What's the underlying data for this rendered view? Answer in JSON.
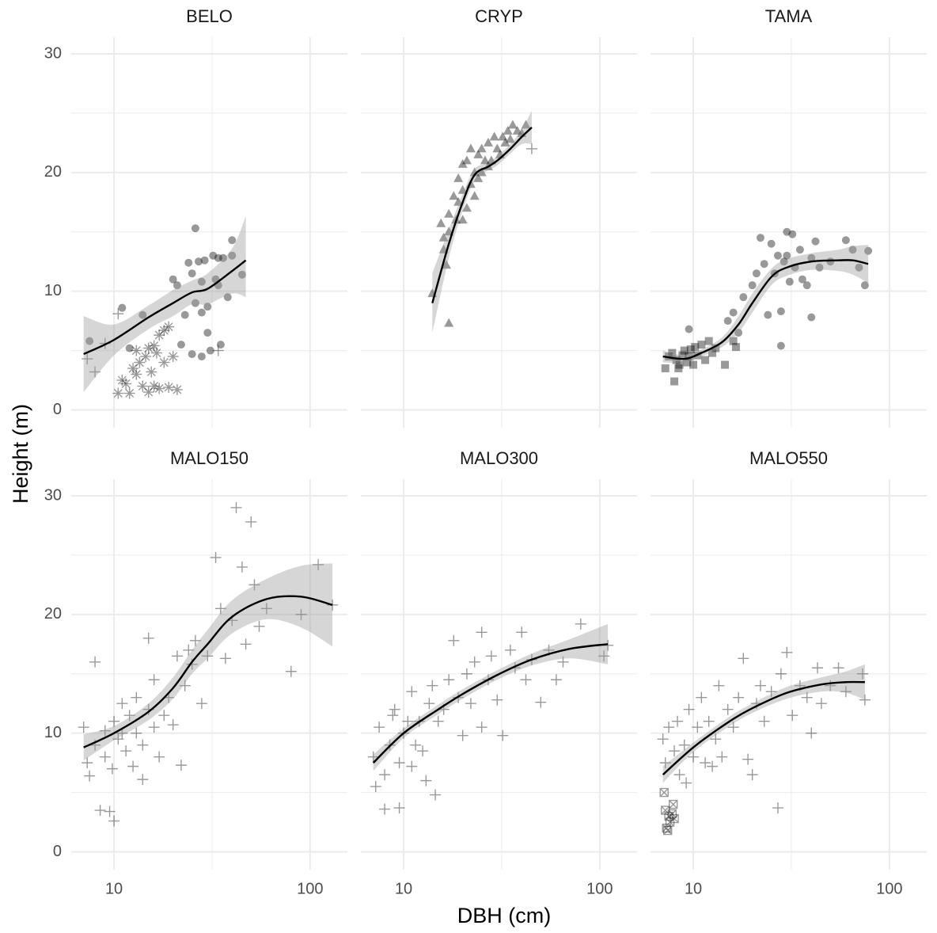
{
  "chart_data": {
    "type": "scatter",
    "xlabel": "DBH (cm)",
    "ylabel": "Height (m)",
    "log_x": true,
    "xlim": [
      6.05,
      155
    ],
    "ylim": [
      -1.5,
      31.4
    ],
    "xticks": [
      10,
      100
    ],
    "yticks": [
      0,
      10,
      20,
      30
    ],
    "x_minor_ticks": [
      31.62
    ],
    "y_minor_ticks": [
      5,
      15,
      25
    ],
    "grid": true,
    "point_color": "#000000",
    "point_alpha": 0.4,
    "line_color": "#000000",
    "ribbon_color": "#999999",
    "ribbon_alpha": 0.4,
    "facets": [
      {
        "title": "BELO",
        "series": [
          {
            "shape": "circle",
            "x": [
              7.5,
              11,
              12,
              14,
              20,
              21,
              23,
              24,
              25,
              26,
              26,
              27,
              28,
              28,
              29,
              30,
              30,
              31,
              32,
              33,
              34,
              35,
              36,
              38,
              40,
              40,
              45,
              28,
              25,
              22,
              34
            ],
            "y": [
              5.8,
              8.6,
              5.2,
              8,
              11,
              10.5,
              8,
              12.4,
              11.5,
              15.3,
              9,
              12.5,
              10.8,
              8.2,
              12.6,
              8.7,
              6.5,
              5,
              13,
              11,
              12.8,
              5.5,
              12.8,
              9.5,
              14.3,
              13,
              11.4,
              4.5,
              4.7,
              5.5,
              10.5
            ]
          },
          {
            "shape": "asterisk",
            "x": [
              10.5,
              11,
              12,
              13,
              13,
              13.5,
              14,
              14.5,
              15,
              15,
              15.5,
              16,
              16,
              16.5,
              17,
              17,
              18,
              18,
              19,
              19,
              20,
              21,
              11.5,
              12.5
            ],
            "y": [
              1.4,
              2.5,
              1.4,
              3,
              5,
              4,
              2,
              4.5,
              5.2,
              1.5,
              3.2,
              5.4,
              2,
              4.8,
              1.8,
              6.3,
              4,
              6.7,
              1.9,
              7,
              4.5,
              1.7,
              2.2,
              3.5
            ]
          },
          {
            "shape": "plus",
            "x": [
              7.3,
              8,
              10.5,
              9,
              34
            ],
            "y": [
              4.3,
              3.2,
              8.1,
              5.6,
              5
            ]
          }
        ],
        "fit": {
          "x": [
            7,
            10,
            15,
            20,
            25,
            30,
            40,
            47
          ],
          "y": [
            4.7,
            5.9,
            7.8,
            9,
            9.9,
            10.2,
            11.7,
            12.6
          ],
          "lower": [
            1.5,
            4.6,
            6.8,
            7.9,
            8.9,
            8.9,
            9.8,
            9.5
          ],
          "upper": [
            7.9,
            7.2,
            8.8,
            10.1,
            10.9,
            11.5,
            13.6,
            16.3
          ]
        }
      },
      {
        "title": "CRYP",
        "series": [
          {
            "shape": "triangle",
            "x": [
              14,
              17,
              16.5,
              16,
              15.5,
              17,
              17,
              18,
              18.5,
              19,
              19,
              20,
              20,
              21,
              21,
              22,
              22,
              23,
              23,
              24,
              24,
              25,
              25,
              26,
              27,
              27,
              28,
              29,
              30,
              31,
              32,
              33,
              34,
              35,
              36,
              38,
              40,
              42,
              16,
              20
            ],
            "y": [
              9.8,
              7.3,
              12.2,
              13.5,
              15.7,
              15,
              16.5,
              18,
              16,
              17.5,
              19.5,
              18.5,
              20.7,
              17,
              21,
              19,
              22,
              20,
              18,
              21.5,
              19.5,
              22,
              20,
              21,
              22.5,
              20.5,
              21,
              23,
              22,
              21.5,
              23,
              22.5,
              23.5,
              22.8,
              24,
              23.5,
              23.3,
              24,
              14.5,
              16
            ]
          },
          {
            "shape": "plus",
            "x": [
              45
            ],
            "y": [
              22
            ]
          }
        ],
        "fit": {
          "x": [
            14,
            17,
            20,
            23,
            27,
            30,
            35,
            40,
            45
          ],
          "y": [
            9,
            14,
            17.5,
            19.8,
            20.5,
            21,
            22,
            23,
            23.8
          ],
          "lower": [
            6.5,
            12.8,
            16.8,
            19.3,
            20.2,
            20.6,
            21.6,
            22.4,
            22.4
          ],
          "upper": [
            11.5,
            15.2,
            18.2,
            20.3,
            20.8,
            21.4,
            22.4,
            23.6,
            25.2
          ]
        }
      },
      {
        "title": "TAMA",
        "series": [
          {
            "shape": "square",
            "x": [
              7.2,
              7.5,
              7.8,
              8,
              8.2,
              8.5,
              8.8,
              9,
              9.3,
              9.5,
              10,
              10.2,
              10.5,
              11,
              11.5,
              12,
              12.5,
              13,
              14.5,
              16,
              16.5,
              8.4,
              9.7
            ],
            "y": [
              3.5,
              4.5,
              4.8,
              2.4,
              4.2,
              3.8,
              4.6,
              5,
              4,
              4.5,
              3.8,
              5.3,
              4.6,
              5.5,
              4.2,
              5.8,
              4.8,
              5.2,
              3.8,
              5.8,
              5.3,
              3.5,
              5.1
            ]
          },
          {
            "shape": "circle",
            "x": [
              9.5,
              15,
              16,
              17,
              18,
              20,
              21,
              22,
              23,
              24,
              25,
              26,
              27,
              28,
              28,
              29,
              30,
              30,
              31,
              32,
              33,
              35,
              36,
              38,
              40,
              40,
              42,
              44,
              50,
              60,
              65,
              75,
              78,
              70
            ],
            "y": [
              6.8,
              7.5,
              8.2,
              6.5,
              9.5,
              10.5,
              11.5,
              14.5,
              12.3,
              8,
              14,
              11.5,
              13,
              5.4,
              8.3,
              12.5,
              15,
              13,
              10.8,
              14.8,
              12,
              13.5,
              11,
              10.5,
              7.8,
              12.8,
              14.2,
              12,
              12.5,
              14.3,
              13.5,
              10.5,
              13.4,
              12
            ]
          }
        ],
        "fit": {
          "x": [
            7,
            9,
            11,
            14,
            17,
            20,
            25,
            30,
            40,
            55,
            65,
            78
          ],
          "y": [
            4.5,
            4.3,
            4.8,
            5.7,
            7.2,
            9.0,
            11.2,
            12.0,
            12.5,
            12.6,
            12.6,
            12.3
          ],
          "lower": [
            4.0,
            4.0,
            4.5,
            5.3,
            6.5,
            8.2,
            10.5,
            11.3,
            11.8,
            11.7,
            11.4,
            10.7
          ],
          "upper": [
            5.0,
            4.6,
            5.1,
            6.1,
            7.9,
            9.8,
            11.9,
            12.7,
            13.2,
            13.5,
            13.8,
            13.9
          ]
        }
      },
      {
        "title": "MALO150",
        "series": [
          {
            "shape": "plus",
            "x": [
              7,
              7.3,
              7.5,
              8,
              8,
              8.5,
              9,
              9.5,
              9.8,
              10,
              10,
              10.5,
              11,
              11,
              11.5,
              12,
              12.5,
              13,
              13,
              14,
              14,
              15,
              15,
              16,
              16,
              17,
              18,
              19,
              20,
              21,
              22,
              23,
              24,
              25,
              26,
              28,
              30,
              33,
              35,
              37,
              40,
              42,
              45,
              47,
              50,
              52,
              55,
              60,
              80,
              90,
              110,
              130,
              9
            ],
            "y": [
              10.5,
              7.5,
              6.4,
              16,
              9,
              3.5,
              8,
              3.4,
              7,
              2.6,
              11,
              9.5,
              12.5,
              10,
              8.5,
              11.5,
              7.2,
              10,
              13,
              6.1,
              9,
              12,
              18,
              14.5,
              10.5,
              8,
              11.5,
              13,
              10.7,
              16.5,
              7.3,
              14,
              17,
              15.8,
              17.8,
              12.5,
              16.5,
              24.8,
              20.5,
              16.3,
              19.5,
              29,
              24,
              17.5,
              27.8,
              22.5,
              19,
              20.5,
              15.2,
              20,
              24.2,
              20.8,
              10.2
            ]
          }
        ],
        "fit": {
          "x": [
            7,
            10,
            15,
            20,
            25,
            30,
            40,
            60,
            90,
            130
          ],
          "y": [
            8.8,
            10,
            11.8,
            13.8,
            16,
            17.5,
            19.8,
            21.3,
            21.5,
            20.8
          ],
          "lower": [
            7.7,
            9.4,
            11.1,
            12.9,
            15,
            16.3,
            18.4,
            19.6,
            18.9,
            17.3
          ],
          "upper": [
            9.9,
            10.6,
            12.5,
            14.7,
            17,
            18.7,
            21.2,
            23,
            24.1,
            24.3
          ]
        }
      },
      {
        "title": "MALO300",
        "series": [
          {
            "shape": "plus",
            "x": [
              7,
              7.2,
              7.5,
              8,
              8,
              8.5,
              9,
              9.5,
              9.5,
              10,
              10.5,
              11,
              11.5,
              12,
              12.5,
              13,
              13.5,
              14,
              14.5,
              15,
              16,
              17,
              18,
              19,
              20,
              21,
              22,
              23,
              25,
              25,
              27,
              28,
              30,
              32,
              35,
              37,
              40,
              42,
              45,
              50,
              55,
              60,
              65,
              80,
              105,
              110,
              8.8,
              11
            ],
            "y": [
              8,
              5.5,
              10.5,
              6.5,
              3.6,
              9,
              12,
              3.7,
              7.5,
              10,
              11,
              13.5,
              9,
              11,
              8.5,
              6,
              12.5,
              14,
              4.8,
              11,
              12,
              14.5,
              17.8,
              13,
              9.8,
              15,
              12.5,
              16,
              18.5,
              10.5,
              14.5,
              16.5,
              12.8,
              9.8,
              17,
              15.5,
              18.5,
              14.5,
              16.2,
              12.6,
              17,
              14.5,
              16,
              19.2,
              16.5,
              17.4,
              11.5,
              7.2
            ]
          }
        ],
        "fit": {
          "x": [
            7,
            10,
            15,
            20,
            30,
            45,
            70,
            110
          ],
          "y": [
            7.5,
            10,
            12,
            13.3,
            14.9,
            16.2,
            17.1,
            17.5
          ],
          "lower": [
            6.8,
            9.6,
            11.6,
            12.9,
            14.5,
            15.7,
            16.3,
            15.8
          ],
          "upper": [
            8.2,
            10.4,
            12.4,
            13.7,
            15.3,
            16.7,
            17.9,
            19.2
          ]
        }
      },
      {
        "title": "MALO550",
        "series": [
          {
            "shape": "plus",
            "x": [
              7,
              7.2,
              7.5,
              8,
              8.3,
              8.5,
              9,
              9.5,
              10,
              10.5,
              11,
              11.5,
              12,
              13,
              13.5,
              14,
              15,
              16,
              17,
              18,
              19,
              20,
              21,
              22,
              23,
              25,
              27,
              28,
              30,
              32,
              35,
              38,
              40,
              43,
              45,
              50,
              55,
              60,
              75,
              73,
              9.2,
              12.5
            ],
            "y": [
              9.5,
              7.5,
              10.5,
              8.5,
              11,
              6.5,
              9,
              12,
              8,
              10.5,
              13,
              7.5,
              11,
              9.5,
              14,
              8,
              12,
              10.5,
              13,
              16.3,
              7.8,
              6.5,
              12.5,
              14,
              11,
              13.5,
              3.7,
              15,
              16.8,
              11.5,
              14,
              13,
              10,
              15.5,
              12.5,
              14,
              15.5,
              13.5,
              12.8,
              15,
              5.8,
              7.2
            ]
          },
          {
            "shape": "boxed-x",
            "x": [
              7.1,
              7.2,
              7.3,
              7.5,
              7.6,
              7.8,
              8,
              7.4,
              7.9
            ],
            "y": [
              5,
              3.5,
              2,
              3,
              2.5,
              3.2,
              2.8,
              1.8,
              4
            ]
          }
        ],
        "fit": {
          "x": [
            7,
            10,
            15,
            20,
            30,
            45,
            60,
            75
          ],
          "y": [
            6.5,
            8.8,
            10.9,
            12.1,
            13.4,
            14.1,
            14.3,
            14.3
          ],
          "lower": [
            5.8,
            8.4,
            10.5,
            11.7,
            12.9,
            13.5,
            13.4,
            12.8
          ],
          "upper": [
            7.2,
            9.2,
            11.3,
            12.5,
            13.9,
            14.7,
            15.2,
            15.8
          ]
        }
      }
    ]
  }
}
